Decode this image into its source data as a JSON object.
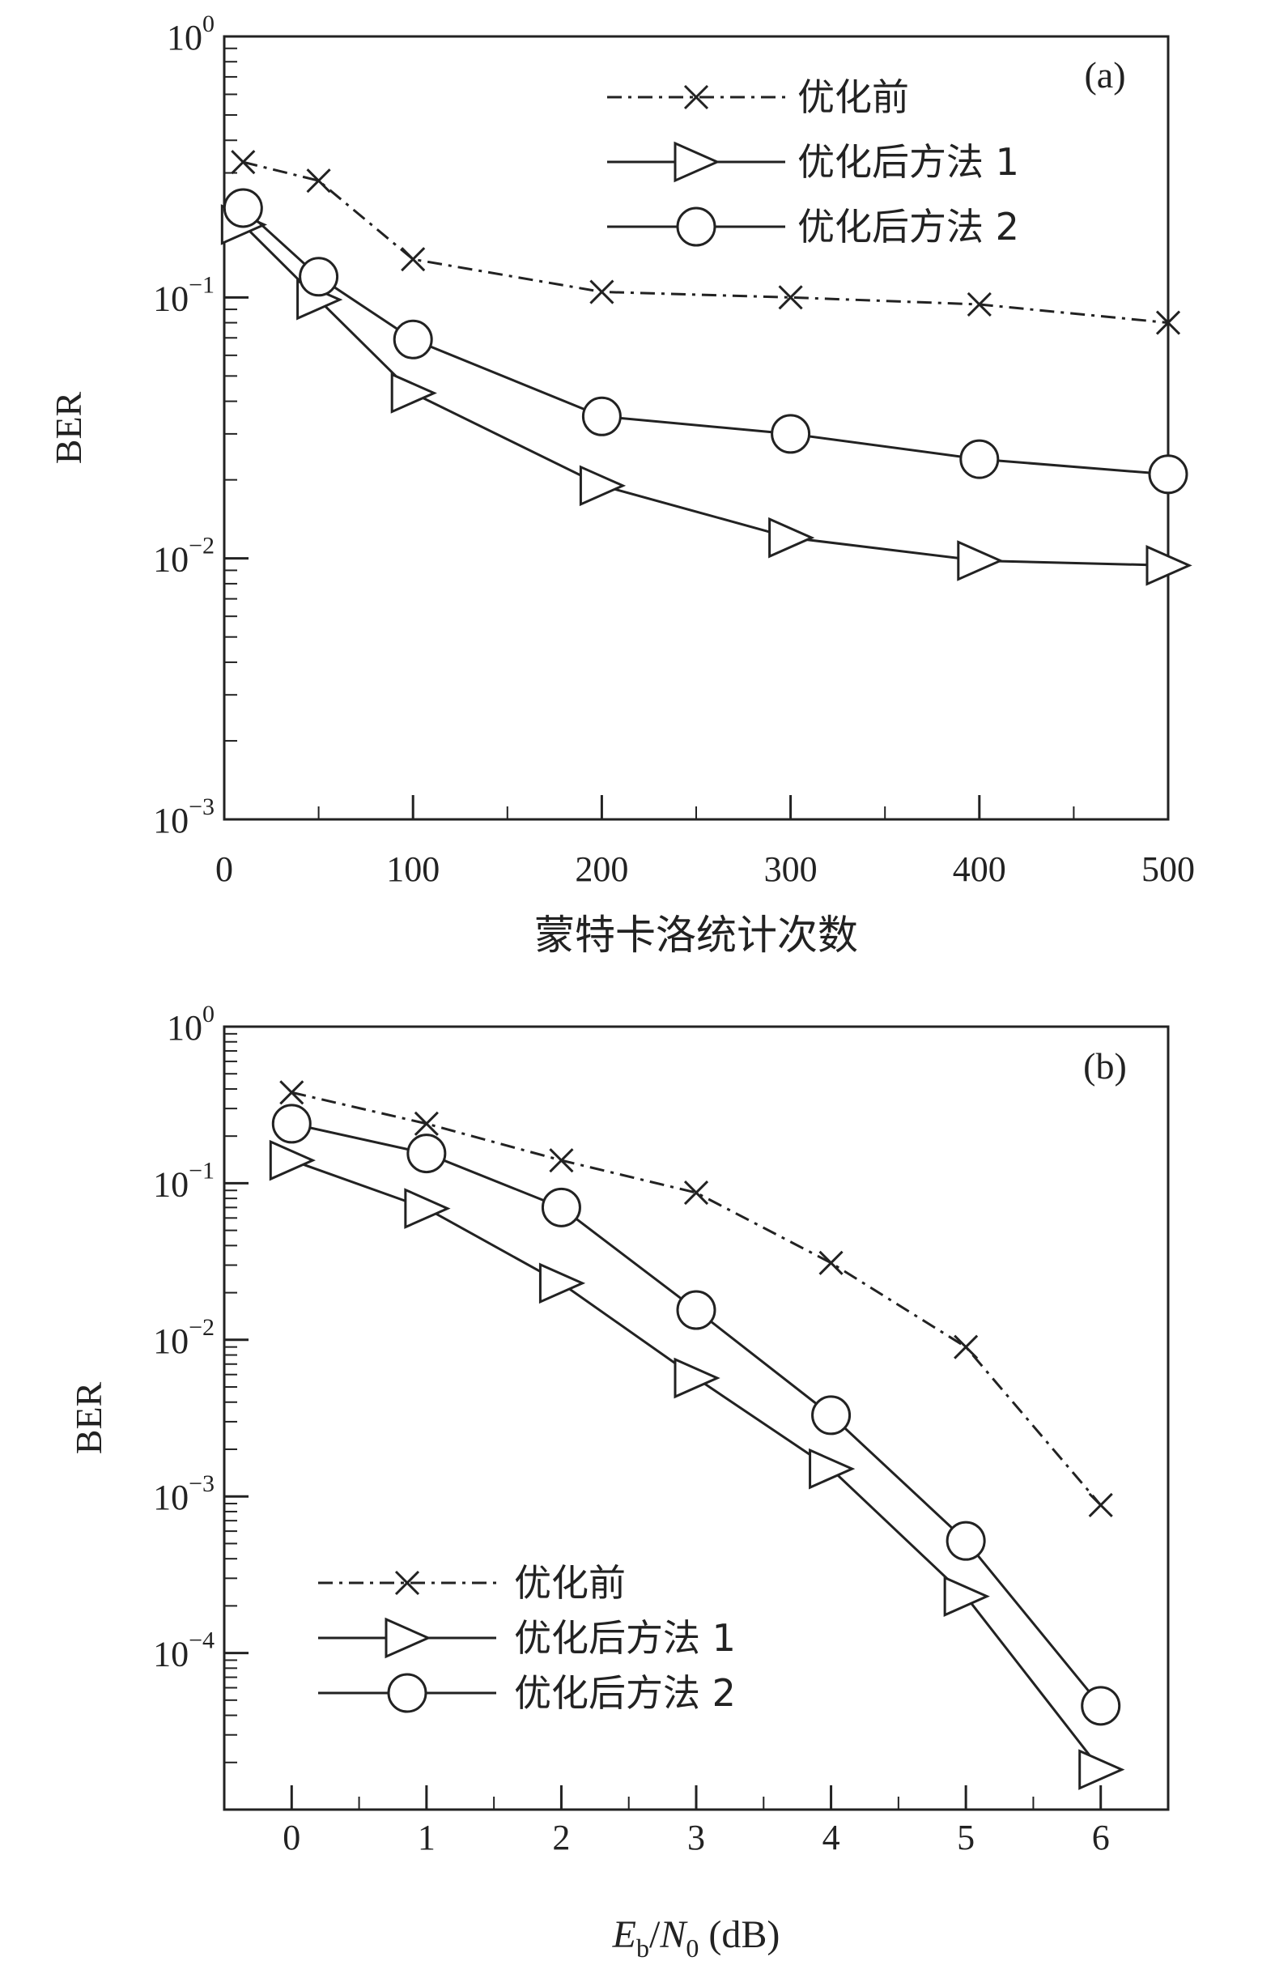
{
  "chart_data": [
    {
      "type": "line",
      "panel_label": "(a)",
      "xlabel": "蒙特卡洛统计次数",
      "ylabel": "BER",
      "xlim": [
        0,
        500
      ],
      "ylim": [
        0.001,
        1
      ],
      "yscale": "log",
      "xticks": [
        "0",
        "100",
        "200",
        "300",
        "400",
        "500"
      ],
      "yticks": [
        {
          "base": "10",
          "exp": "0"
        },
        {
          "base": "10",
          "exp": "−1"
        },
        {
          "base": "10",
          "exp": "−2"
        },
        {
          "base": "10",
          "exp": "−3"
        }
      ],
      "grid": false,
      "legend_position": "top-right",
      "series": [
        {
          "name": "优化前",
          "marker": "x",
          "line": "dashdot",
          "x": [
            10,
            50,
            100,
            200,
            300,
            400,
            500
          ],
          "y": [
            0.33,
            0.28,
            0.14,
            0.105,
            0.1,
            0.094,
            0.08
          ]
        },
        {
          "name": "优化后方法 1",
          "marker": "triangle-right",
          "line": "solid",
          "x": [
            10,
            50,
            100,
            200,
            300,
            400,
            500
          ],
          "y": [
            0.19,
            0.098,
            0.043,
            0.019,
            0.012,
            0.0098,
            0.0094
          ]
        },
        {
          "name": "优化后方法 2",
          "marker": "circle",
          "line": "solid",
          "x": [
            10,
            50,
            100,
            200,
            300,
            400,
            500
          ],
          "y": [
            0.22,
            0.12,
            0.069,
            0.035,
            0.03,
            0.024,
            0.021
          ]
        }
      ]
    },
    {
      "type": "line",
      "panel_label": "(b)",
      "xlabel_parts": {
        "main1": "E",
        "sub1": "b",
        "sep": "/",
        "main2": "N",
        "sub2": "0",
        "unit": " (dB)"
      },
      "ylabel": "BER",
      "xlim": [
        -0.5,
        6.5
      ],
      "ylim": [
        1e-05,
        1
      ],
      "yscale": "log",
      "xticks": [
        "0",
        "1",
        "2",
        "3",
        "4",
        "5",
        "6"
      ],
      "yticks": [
        {
          "base": "10",
          "exp": "0"
        },
        {
          "base": "10",
          "exp": "−1"
        },
        {
          "base": "10",
          "exp": "−2"
        },
        {
          "base": "10",
          "exp": "−3"
        },
        {
          "base": "10",
          "exp": "−4"
        }
      ],
      "grid": false,
      "legend_position": "bottom-left",
      "series": [
        {
          "name": "优化前",
          "marker": "x",
          "line": "dashdot",
          "x": [
            0,
            1,
            2,
            3,
            4,
            5,
            6
          ],
          "y": [
            0.38,
            0.24,
            0.14,
            0.087,
            0.031,
            0.009,
            0.00088
          ]
        },
        {
          "name": "优化后方法 1",
          "marker": "triangle-right",
          "line": "solid",
          "x": [
            0,
            1,
            2,
            3,
            4,
            5,
            6
          ],
          "y": [
            0.14,
            0.069,
            0.023,
            0.0057,
            0.0015,
            0.00023,
            1.8e-05
          ]
        },
        {
          "name": "优化后方法 2",
          "marker": "circle",
          "line": "solid",
          "x": [
            0,
            1,
            2,
            3,
            4,
            5,
            6
          ],
          "y": [
            0.24,
            0.155,
            0.07,
            0.0155,
            0.0033,
            0.00052,
            4.6e-05
          ]
        }
      ]
    }
  ]
}
